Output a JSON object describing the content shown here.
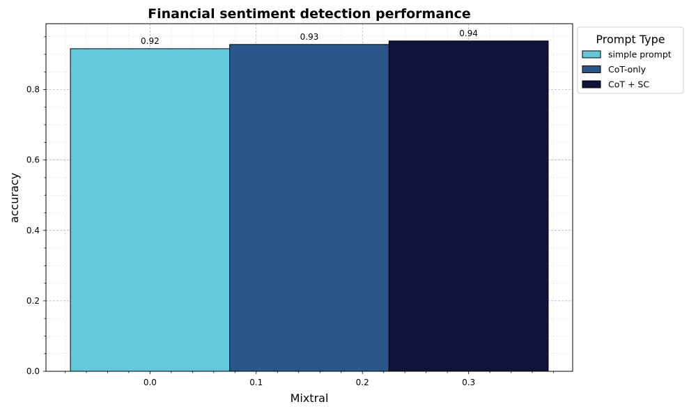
{
  "chart_data": {
    "type": "bar",
    "title": "Financial sentiment detection performance",
    "xlabel": "Mixtral",
    "ylabel": "accuracy",
    "xlim": [
      -0.098,
      0.398
    ],
    "ylim": [
      0,
      0.987
    ],
    "x_ticks": [
      0.0,
      0.1,
      0.2,
      0.3
    ],
    "x_tick_labels": [
      "0.0",
      "0.1",
      "0.2",
      "0.3"
    ],
    "y_ticks": [
      0.0,
      0.2,
      0.4,
      0.6,
      0.8
    ],
    "y_tick_labels": [
      "0.0",
      "0.2",
      "0.4",
      "0.6",
      "0.8"
    ],
    "bar_width": 0.15,
    "grid": true,
    "legend_title": "Prompt Type",
    "legend_position": "outside-top-right",
    "series": [
      {
        "name": "simple prompt",
        "x": 0.0,
        "value": 0.916,
        "label": "0.92",
        "color": "#62c8da"
      },
      {
        "name": "CoT-only",
        "x": 0.15,
        "value": 0.928,
        "label": "0.93",
        "color": "#2b5689"
      },
      {
        "name": "CoT + SC",
        "x": 0.3,
        "value": 0.938,
        "label": "0.94",
        "color": "#10143c"
      }
    ]
  }
}
